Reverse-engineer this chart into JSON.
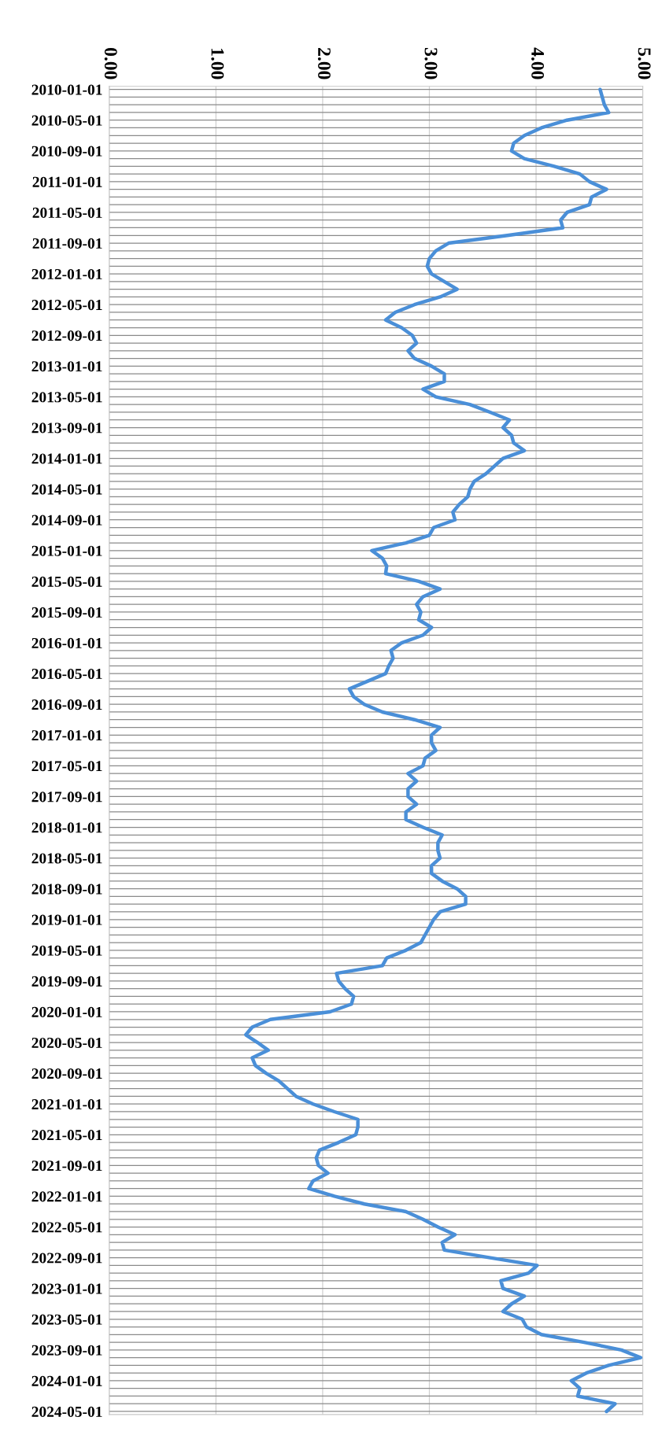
{
  "chart_data": {
    "type": "line",
    "orientation": "horizontal",
    "categories": [
      "2010-01-01",
      null,
      null,
      null,
      "2010-05-01",
      null,
      null,
      null,
      "2010-09-01",
      null,
      null,
      null,
      "2011-01-01",
      null,
      null,
      null,
      "2011-05-01",
      null,
      null,
      null,
      "2011-09-01",
      null,
      null,
      null,
      "2012-01-01",
      null,
      null,
      null,
      "2012-05-01",
      null,
      null,
      null,
      "2012-09-01",
      null,
      null,
      null,
      "2013-01-01",
      null,
      null,
      null,
      "2013-05-01",
      null,
      null,
      null,
      "2013-09-01",
      null,
      null,
      null,
      "2014-01-01",
      null,
      null,
      null,
      "2014-05-01",
      null,
      null,
      null,
      "2014-09-01",
      null,
      null,
      null,
      "2015-01-01",
      null,
      null,
      null,
      "2015-05-01",
      null,
      null,
      null,
      "2015-09-01",
      null,
      null,
      null,
      "2016-01-01",
      null,
      null,
      null,
      "2016-05-01",
      null,
      null,
      null,
      "2016-09-01",
      null,
      null,
      null,
      "2017-01-01",
      null,
      null,
      null,
      "2017-05-01",
      null,
      null,
      null,
      "2017-09-01",
      null,
      null,
      null,
      "2018-01-01",
      null,
      null,
      null,
      "2018-05-01",
      null,
      null,
      null,
      "2018-09-01",
      null,
      null,
      null,
      "2019-01-01",
      null,
      null,
      null,
      "2019-05-01",
      null,
      null,
      null,
      "2019-09-01",
      null,
      null,
      null,
      "2020-01-01",
      null,
      null,
      null,
      "2020-05-01",
      null,
      null,
      null,
      "2020-09-01",
      null,
      null,
      null,
      "2021-01-01",
      null,
      null,
      null,
      "2021-05-01",
      null,
      null,
      null,
      "2021-09-01",
      null,
      null,
      null,
      "2022-01-01",
      null,
      null,
      null,
      "2022-05-01",
      null,
      null,
      null,
      "2022-09-01",
      null,
      null,
      null,
      "2023-01-01",
      null,
      null,
      null,
      "2023-05-01",
      null,
      null,
      null,
      "2023-09-01",
      null,
      null,
      null,
      "2024-01-01",
      null,
      null,
      null,
      "2024-05-01"
    ],
    "series": [
      {
        "color": "#4a8fd8",
        "values": [
          4.6,
          4.62,
          4.64,
          4.68,
          4.29,
          4.05,
          3.89,
          3.79,
          3.77,
          3.89,
          4.17,
          4.41,
          4.5,
          4.66,
          4.52,
          4.5,
          4.29,
          4.23,
          4.25,
          3.73,
          3.18,
          3.06,
          3.0,
          2.98,
          3.02,
          3.14,
          3.26,
          3.1,
          2.86,
          2.68,
          2.59,
          2.74,
          2.84,
          2.88,
          2.8,
          2.86,
          3.02,
          3.14,
          3.14,
          2.94,
          3.06,
          3.38,
          3.57,
          3.75,
          3.69,
          3.77,
          3.79,
          3.89,
          3.69,
          3.61,
          3.53,
          3.42,
          3.38,
          3.36,
          3.28,
          3.22,
          3.24,
          3.04,
          3.0,
          2.78,
          2.46,
          2.56,
          2.6,
          2.59,
          2.9,
          3.1,
          2.94,
          2.88,
          2.92,
          2.9,
          3.02,
          2.94,
          2.74,
          2.64,
          2.66,
          2.62,
          2.59,
          2.42,
          2.25,
          2.29,
          2.39,
          2.56,
          2.86,
          3.1,
          3.02,
          3.02,
          3.06,
          2.96,
          2.94,
          2.8,
          2.88,
          2.8,
          2.8,
          2.88,
          2.78,
          2.78,
          2.94,
          3.12,
          3.08,
          3.08,
          3.1,
          3.02,
          3.02,
          3.12,
          3.26,
          3.34,
          3.34,
          3.1,
          3.04,
          3.0,
          2.96,
          2.92,
          2.78,
          2.6,
          2.56,
          2.13,
          2.15,
          2.21,
          2.29,
          2.27,
          2.07,
          1.51,
          1.34,
          1.28,
          1.39,
          1.49,
          1.34,
          1.37,
          1.47,
          1.59,
          1.67,
          1.75,
          1.91,
          2.11,
          2.33,
          2.33,
          2.31,
          2.15,
          1.97,
          1.94,
          1.96,
          2.05,
          1.91,
          1.87,
          2.11,
          2.39,
          2.78,
          2.94,
          3.08,
          3.24,
          3.12,
          3.14,
          3.57,
          4.01,
          3.93,
          3.67,
          3.69,
          3.89,
          3.77,
          3.69,
          3.87,
          3.91,
          4.05,
          4.45,
          4.8,
          4.98,
          4.68,
          4.47,
          4.33,
          4.41,
          4.39,
          4.74,
          4.66
        ]
      }
    ],
    "xlim": [
      0,
      5
    ],
    "xticks": [
      {
        "value": 0,
        "label": "0.00"
      },
      {
        "value": 1,
        "label": "1.00"
      },
      {
        "value": 2,
        "label": "2.00"
      },
      {
        "value": 3,
        "label": "3.00"
      },
      {
        "value": 4,
        "label": "4.00"
      },
      {
        "value": 5,
        "label": "5.00"
      }
    ],
    "grid": true,
    "marker": "none",
    "line_style": "solid"
  }
}
